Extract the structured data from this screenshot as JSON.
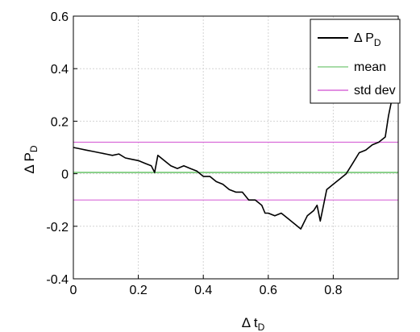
{
  "chart_data": {
    "type": "line",
    "xlabel": "Δ t",
    "xlabel_sub": "D",
    "ylabel": "Δ P",
    "ylabel_sub": "D",
    "xlim": [
      0,
      1
    ],
    "ylim": [
      -0.4,
      0.6
    ],
    "x_ticks": [
      "0",
      "0.2",
      "0.4",
      "0.6",
      "0.8"
    ],
    "x_tick_values": [
      0,
      0.2,
      0.4,
      0.6,
      0.8
    ],
    "y_ticks": [
      "-0.4",
      "-0.2",
      "0",
      "0.2",
      "0.4",
      "0.6"
    ],
    "y_tick_values": [
      -0.4,
      -0.2,
      0,
      0.2,
      0.4,
      0.6
    ],
    "grid": true,
    "legend_position": "top-right",
    "series": [
      {
        "name": "Δ P",
        "name_sub": "D",
        "color": "#000000",
        "x": [
          0,
          0.02,
          0.04,
          0.06,
          0.08,
          0.1,
          0.12,
          0.14,
          0.16,
          0.18,
          0.2,
          0.22,
          0.24,
          0.25,
          0.26,
          0.28,
          0.3,
          0.32,
          0.34,
          0.36,
          0.38,
          0.4,
          0.42,
          0.44,
          0.46,
          0.48,
          0.5,
          0.52,
          0.54,
          0.56,
          0.58,
          0.59,
          0.6,
          0.62,
          0.64,
          0.66,
          0.68,
          0.7,
          0.72,
          0.74,
          0.75,
          0.76,
          0.78,
          0.8,
          0.82,
          0.84,
          0.86,
          0.88,
          0.9,
          0.92,
          0.94,
          0.96,
          0.97,
          0.98,
          0.99,
          1.0
        ],
        "y": [
          0.1,
          0.095,
          0.09,
          0.085,
          0.08,
          0.075,
          0.07,
          0.075,
          0.06,
          0.055,
          0.05,
          0.04,
          0.03,
          0.005,
          0.07,
          0.05,
          0.03,
          0.02,
          0.03,
          0.02,
          0.01,
          -0.01,
          -0.01,
          -0.03,
          -0.04,
          -0.06,
          -0.07,
          -0.07,
          -0.1,
          -0.1,
          -0.12,
          -0.15,
          -0.15,
          -0.16,
          -0.15,
          -0.17,
          -0.19,
          -0.21,
          -0.16,
          -0.14,
          -0.12,
          -0.18,
          -0.06,
          -0.04,
          -0.02,
          0.0,
          0.04,
          0.08,
          0.09,
          0.11,
          0.12,
          0.14,
          0.22,
          0.28,
          0.31,
          0.4
        ]
      },
      {
        "name": "mean",
        "color": "#8bd18b",
        "y_const": 0.005
      },
      {
        "name": "std dev",
        "color": "#d86ad8",
        "y_const": [
          0.12,
          -0.1
        ]
      }
    ]
  }
}
